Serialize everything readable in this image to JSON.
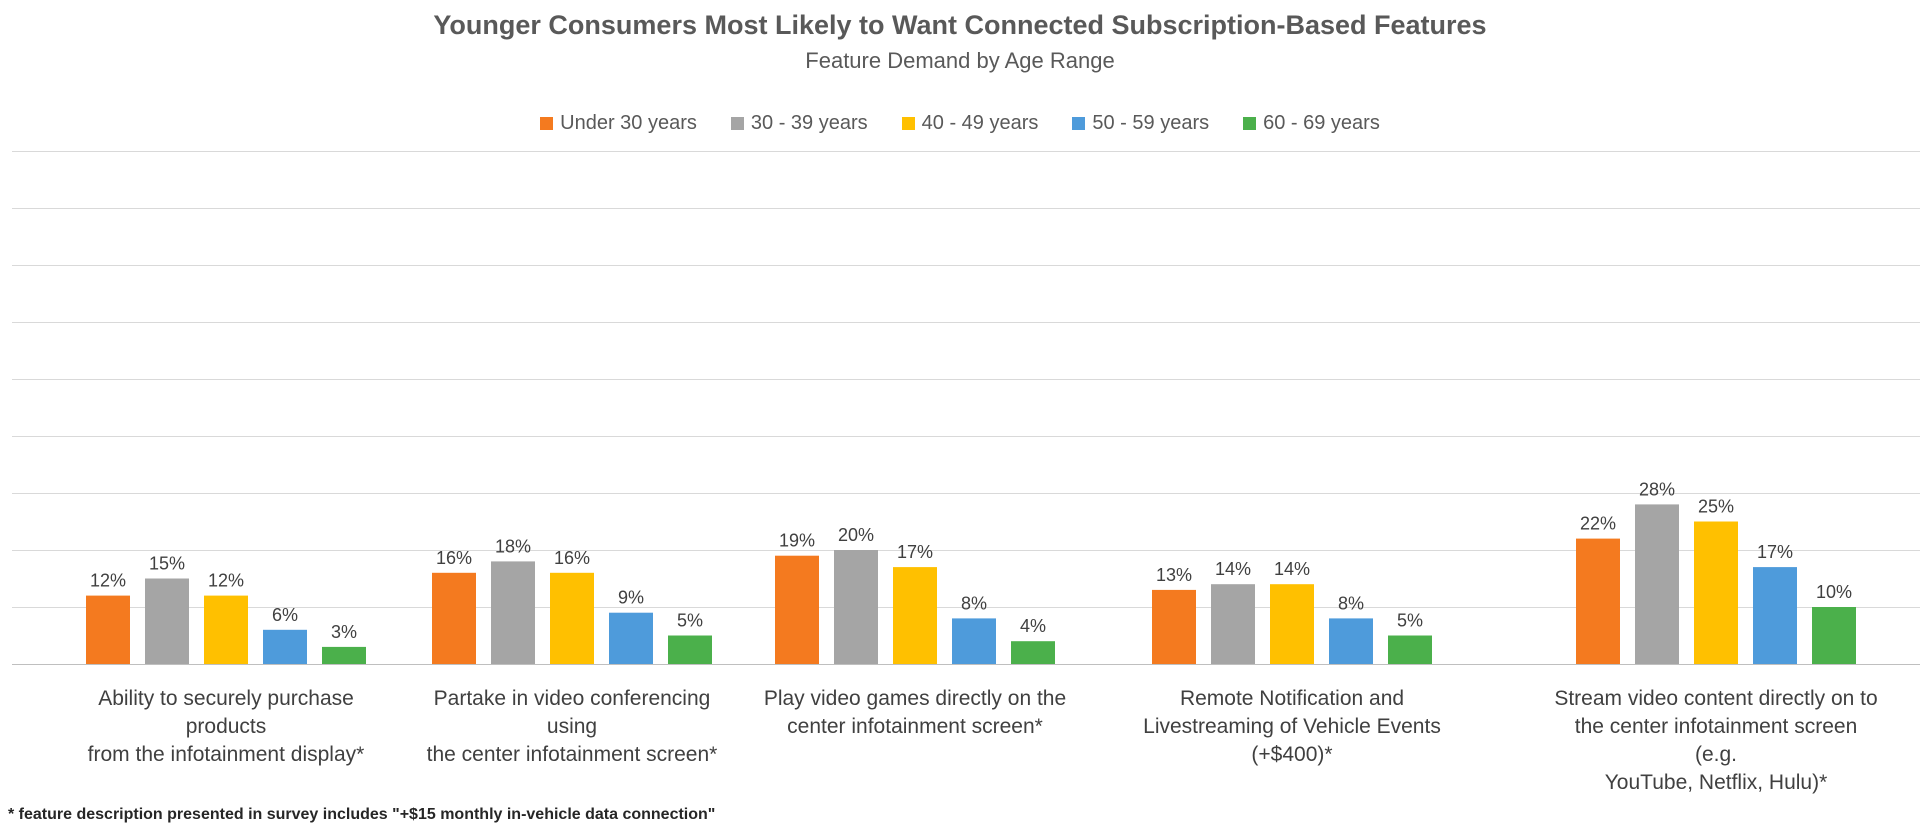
{
  "chart_data": {
    "type": "bar",
    "title": "Younger Consumers Most Likely to Want Connected Subscription-Based Features",
    "subtitle": "Feature Demand by Age Range",
    "categories": [
      "Ability to securely purchase products from the infotainment display*",
      "Partake in video conferencing using the center infotainment screen*",
      "Play video games directly on the center infotainment screen*",
      "Remote Notification and Livestreaming of Vehicle Events (+$400)*",
      "Stream video content directly on to the center infotainment screen (e.g. YouTube, Netflix, Hulu)*"
    ],
    "category_lines": [
      [
        "Ability to securely purchase products",
        "from the infotainment display*"
      ],
      [
        "Partake in video conferencing using",
        "the center infotainment screen*"
      ],
      [
        "Play video games directly on the",
        "center infotainment screen*"
      ],
      [
        "Remote Notification and",
        "Livestreaming of Vehicle Events",
        "(+$400)*"
      ],
      [
        "Stream video content directly on to",
        "the center infotainment screen (e.g.",
        "YouTube, Netflix, Hulu)*"
      ]
    ],
    "series": [
      {
        "name": "Under 30 years",
        "color": "#F47A1F",
        "values": [
          12,
          16,
          19,
          13,
          22
        ],
        "labels": [
          "12%",
          "16%",
          "19%",
          "13%",
          "22%"
        ]
      },
      {
        "name": "30 - 39 years",
        "color": "#A5A5A5",
        "values": [
          15,
          18,
          20,
          14,
          28
        ],
        "labels": [
          "15%",
          "18%",
          "20%",
          "14%",
          "28%"
        ]
      },
      {
        "name": "40 - 49 years",
        "color": "#FFC000",
        "values": [
          12,
          16,
          17,
          14,
          25
        ],
        "labels": [
          "12%",
          "16%",
          "17%",
          "14%",
          "25%"
        ]
      },
      {
        "name": "50 - 59 years",
        "color": "#4E9BDB",
        "values": [
          6,
          9,
          8,
          8,
          17
        ],
        "labels": [
          "6%",
          "9%",
          "8%",
          "8%",
          "17%"
        ]
      },
      {
        "name": "60 - 69 years",
        "color": "#4BB04B",
        "values": [
          3,
          5,
          4,
          5,
          10
        ],
        "labels": [
          "3%",
          "5%",
          "4%",
          "5%",
          "10%"
        ]
      }
    ],
    "ylim": [
      0,
      50
    ],
    "grid": true,
    "legend": "top-center",
    "footnote": "* feature description presented in survey includes \"+$15 monthly in-vehicle data connection\""
  }
}
